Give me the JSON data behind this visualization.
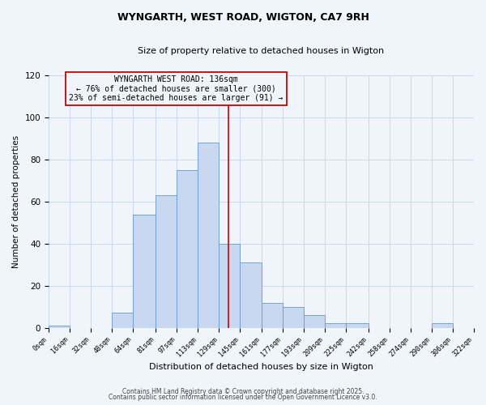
{
  "title": "WYNGARTH, WEST ROAD, WIGTON, CA7 9RH",
  "subtitle": "Size of property relative to detached houses in Wigton",
  "xlabel": "Distribution of detached houses by size in Wigton",
  "ylabel": "Number of detached properties",
  "footer1": "Contains HM Land Registry data © Crown copyright and database right 2025.",
  "footer2": "Contains public sector information licensed under the Open Government Licence v3.0.",
  "bar_left_edges": [
    0,
    16,
    32,
    48,
    64,
    81,
    97,
    113,
    129,
    145,
    161,
    177,
    193,
    209,
    225,
    242,
    258,
    274,
    290,
    306
  ],
  "bar_widths": [
    16,
    16,
    16,
    16,
    17,
    16,
    16,
    16,
    16,
    16,
    16,
    16,
    16,
    16,
    17,
    16,
    16,
    16,
    16,
    16
  ],
  "bar_heights": [
    1,
    0,
    0,
    7,
    54,
    63,
    75,
    88,
    40,
    31,
    12,
    10,
    6,
    2,
    2,
    0,
    0,
    0,
    2,
    0
  ],
  "bar_color": "#c8d8f0",
  "bar_edge_color": "#6699cc",
  "tick_labels": [
    "0sqm",
    "16sqm",
    "32sqm",
    "48sqm",
    "64sqm",
    "81sqm",
    "97sqm",
    "113sqm",
    "129sqm",
    "145sqm",
    "161sqm",
    "177sqm",
    "193sqm",
    "209sqm",
    "225sqm",
    "242sqm",
    "258sqm",
    "274sqm",
    "290sqm",
    "306sqm",
    "322sqm"
  ],
  "vline_x": 136,
  "vline_color": "#cc0000",
  "annotation_title": "WYNGARTH WEST ROAD: 136sqm",
  "annotation_line1": "← 76% of detached houses are smaller (300)",
  "annotation_line2": "23% of semi-detached houses are larger (91) →",
  "annotation_box_color": "#cc0000",
  "ylim": [
    0,
    120
  ],
  "yticks": [
    0,
    20,
    40,
    60,
    80,
    100,
    120
  ],
  "bg_color": "#f0f4fb",
  "grid_color": "#c8d8ee",
  "title_fontsize": 9,
  "subtitle_fontsize": 8,
  "xlabel_fontsize": 8,
  "ylabel_fontsize": 7.5,
  "tick_fontsize": 6,
  "annotation_fontsize": 7,
  "footer_fontsize": 5.5
}
